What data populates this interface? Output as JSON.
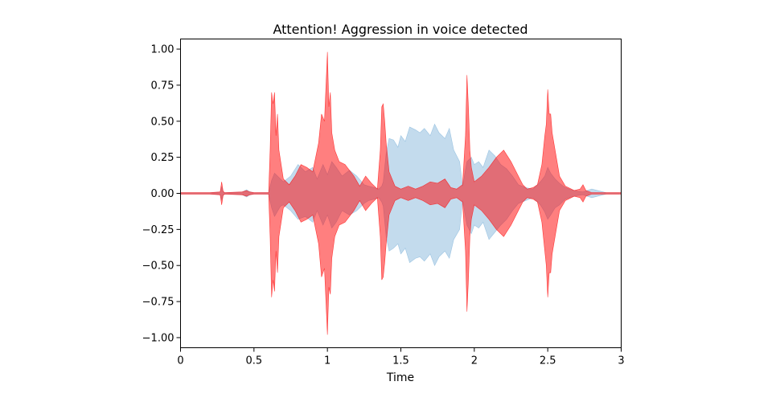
{
  "chart_data": {
    "type": "area",
    "title": "Attention! Aggression in voice detected",
    "xlabel": "Time",
    "ylabel": "",
    "xlim": [
      0,
      3
    ],
    "ylim": [
      -1.07,
      1.07
    ],
    "x_ticks": [
      0,
      0.5,
      1,
      1.5,
      2,
      2.5,
      3
    ],
    "x_tick_labels": [
      "0",
      "0.5",
      "1",
      "1.5",
      "2",
      "2.5",
      "3"
    ],
    "y_ticks": [
      1.0,
      0.75,
      0.5,
      0.25,
      0.0,
      -0.25,
      -0.5,
      -0.75,
      -1.0
    ],
    "y_tick_labels": [
      "1.00",
      "0.75",
      "0.50",
      "0.25",
      "0.00",
      "−0.25",
      "−0.50",
      "−0.75",
      "−1.00"
    ],
    "grid": false,
    "legend": "none",
    "series": [
      {
        "color": "#7ab0d8",
        "opacity": 0.45,
        "x": [
          0,
          0.2,
          0.27,
          0.28,
          0.29,
          0.3,
          0.42,
          0.45,
          0.47,
          0.5,
          0.6,
          0.62,
          0.64,
          0.68,
          0.7,
          0.75,
          0.8,
          0.85,
          0.9,
          0.93,
          0.97,
          1.0,
          1.03,
          1.06,
          1.1,
          1.15,
          1.2,
          1.25,
          1.28,
          1.32,
          1.35,
          1.37,
          1.38,
          1.4,
          1.42,
          1.45,
          1.48,
          1.5,
          1.53,
          1.56,
          1.6,
          1.63,
          1.66,
          1.7,
          1.73,
          1.76,
          1.8,
          1.83,
          1.86,
          1.9,
          1.92,
          1.95,
          1.98,
          2.0,
          2.03,
          2.06,
          2.1,
          2.14,
          2.18,
          2.22,
          2.26,
          2.3,
          2.35,
          2.4,
          2.45,
          2.48,
          2.5,
          2.52,
          2.55,
          2.58,
          2.62,
          2.66,
          2.7,
          2.74,
          2.8,
          2.9,
          3.0
        ],
        "upper": [
          0.004,
          0.004,
          0.01,
          0.045,
          0.012,
          0.004,
          0.01,
          0.025,
          0.012,
          0.004,
          0.005,
          0.09,
          0.14,
          0.1,
          0.08,
          0.12,
          0.2,
          0.15,
          0.18,
          0.1,
          0.2,
          0.13,
          0.22,
          0.18,
          0.12,
          0.16,
          0.12,
          0.06,
          0.05,
          0.04,
          0.03,
          0.05,
          0.08,
          0.28,
          0.38,
          0.37,
          0.32,
          0.4,
          0.36,
          0.46,
          0.44,
          0.42,
          0.45,
          0.4,
          0.48,
          0.42,
          0.38,
          0.45,
          0.3,
          0.22,
          0.05,
          0.22,
          0.25,
          0.2,
          0.22,
          0.18,
          0.3,
          0.26,
          0.2,
          0.17,
          0.12,
          0.06,
          0.04,
          0.03,
          0.08,
          0.12,
          0.18,
          0.14,
          0.1,
          0.07,
          0.04,
          0.025,
          0.015,
          0.01,
          0.03,
          0.004,
          0.004
        ],
        "lower": [
          -0.004,
          -0.004,
          -0.01,
          -0.045,
          -0.012,
          -0.004,
          -0.01,
          -0.025,
          -0.012,
          -0.004,
          -0.005,
          -0.1,
          -0.16,
          -0.09,
          -0.08,
          -0.12,
          -0.18,
          -0.16,
          -0.2,
          -0.12,
          -0.22,
          -0.15,
          -0.24,
          -0.2,
          -0.12,
          -0.15,
          -0.12,
          -0.07,
          -0.05,
          -0.04,
          -0.03,
          -0.06,
          -0.09,
          -0.3,
          -0.4,
          -0.38,
          -0.35,
          -0.42,
          -0.38,
          -0.48,
          -0.45,
          -0.44,
          -0.47,
          -0.42,
          -0.5,
          -0.44,
          -0.4,
          -0.45,
          -0.32,
          -0.25,
          -0.05,
          -0.22,
          -0.28,
          -0.22,
          -0.24,
          -0.2,
          -0.32,
          -0.27,
          -0.22,
          -0.18,
          -0.12,
          -0.07,
          -0.05,
          -0.03,
          -0.08,
          -0.13,
          -0.18,
          -0.15,
          -0.1,
          -0.08,
          -0.04,
          -0.025,
          -0.015,
          -0.01,
          -0.03,
          -0.004,
          -0.004
        ]
      },
      {
        "color": "#ff0000",
        "opacity": 0.5,
        "x": [
          0,
          0.2,
          0.27,
          0.28,
          0.29,
          0.3,
          0.42,
          0.45,
          0.47,
          0.5,
          0.6,
          0.61,
          0.62,
          0.63,
          0.64,
          0.65,
          0.66,
          0.67,
          0.7,
          0.74,
          0.78,
          0.82,
          0.86,
          0.9,
          0.94,
          0.96,
          0.98,
          1.0,
          1.01,
          1.02,
          1.03,
          1.05,
          1.08,
          1.12,
          1.18,
          1.22,
          1.26,
          1.3,
          1.34,
          1.36,
          1.37,
          1.38,
          1.39,
          1.4,
          1.42,
          1.46,
          1.5,
          1.55,
          1.6,
          1.65,
          1.7,
          1.75,
          1.8,
          1.84,
          1.88,
          1.92,
          1.94,
          1.95,
          1.96,
          1.97,
          1.98,
          2.0,
          2.05,
          2.1,
          2.15,
          2.2,
          2.25,
          2.3,
          2.33,
          2.36,
          2.4,
          2.43,
          2.46,
          2.48,
          2.49,
          2.5,
          2.51,
          2.52,
          2.53,
          2.55,
          2.58,
          2.62,
          2.68,
          2.72,
          2.74,
          2.76,
          2.8,
          2.9,
          3.0
        ],
        "upper": [
          0.005,
          0.005,
          0.01,
          0.08,
          0.015,
          0.005,
          0.01,
          0.02,
          0.01,
          0.005,
          0.005,
          0.3,
          0.7,
          0.62,
          0.7,
          0.4,
          0.55,
          0.3,
          0.1,
          0.06,
          0.12,
          0.2,
          0.18,
          0.15,
          0.35,
          0.55,
          0.5,
          0.98,
          0.6,
          0.7,
          0.42,
          0.3,
          0.22,
          0.2,
          0.12,
          0.05,
          0.12,
          0.07,
          0.03,
          0.3,
          0.6,
          0.62,
          0.5,
          0.35,
          0.15,
          0.05,
          0.03,
          0.05,
          0.03,
          0.05,
          0.08,
          0.07,
          0.1,
          0.04,
          0.03,
          0.06,
          0.4,
          0.82,
          0.6,
          0.3,
          0.18,
          0.08,
          0.12,
          0.18,
          0.25,
          0.3,
          0.22,
          0.12,
          0.06,
          0.03,
          0.04,
          0.06,
          0.2,
          0.4,
          0.48,
          0.72,
          0.55,
          0.55,
          0.42,
          0.3,
          0.12,
          0.05,
          0.02,
          0.03,
          0.06,
          0.02,
          0.005,
          0.005,
          0.005
        ],
        "lower": [
          -0.005,
          -0.005,
          -0.01,
          -0.08,
          -0.015,
          -0.005,
          -0.01,
          -0.02,
          -0.01,
          -0.005,
          -0.005,
          -0.3,
          -0.72,
          -0.6,
          -0.68,
          -0.4,
          -0.55,
          -0.3,
          -0.1,
          -0.06,
          -0.12,
          -0.2,
          -0.18,
          -0.15,
          -0.35,
          -0.58,
          -0.52,
          -0.98,
          -0.65,
          -0.7,
          -0.45,
          -0.3,
          -0.22,
          -0.2,
          -0.12,
          -0.05,
          -0.12,
          -0.07,
          -0.03,
          -0.3,
          -0.6,
          -0.58,
          -0.48,
          -0.35,
          -0.15,
          -0.05,
          -0.03,
          -0.05,
          -0.03,
          -0.05,
          -0.08,
          -0.07,
          -0.1,
          -0.04,
          -0.03,
          -0.06,
          -0.4,
          -0.82,
          -0.6,
          -0.3,
          -0.18,
          -0.08,
          -0.12,
          -0.18,
          -0.25,
          -0.3,
          -0.22,
          -0.12,
          -0.06,
          -0.03,
          -0.04,
          -0.06,
          -0.2,
          -0.4,
          -0.5,
          -0.72,
          -0.55,
          -0.55,
          -0.42,
          -0.3,
          -0.12,
          -0.05,
          -0.02,
          -0.03,
          -0.06,
          -0.02,
          -0.005,
          -0.005,
          -0.005
        ]
      }
    ]
  }
}
